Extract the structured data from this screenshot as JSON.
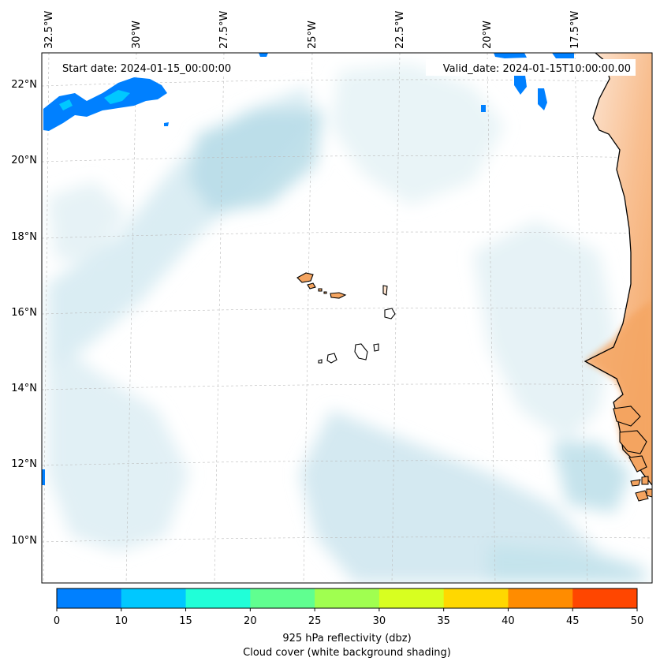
{
  "header": {
    "start_date": "Start date: 2024-01-15_00:00:00",
    "valid_date": "Valid_date: 2024-01-15T10:00:00.00"
  },
  "map": {
    "lon_labels": [
      "32.5°W",
      "30°W",
      "27.5°W",
      "25°W",
      "22.5°W",
      "20°W",
      "17.5°W"
    ],
    "lat_labels": [
      "22°N",
      "20°N",
      "18°N",
      "16°N",
      "14°N",
      "12°N",
      "10°N"
    ],
    "colors": {
      "land": "#f4a460",
      "cloud": "#bfe0ea",
      "coast": "#000000"
    }
  },
  "colorbar": {
    "ticks": [
      "0",
      "10",
      "15",
      "20",
      "25",
      "30",
      "35",
      "40",
      "45",
      "50"
    ],
    "colors": [
      "#0080ff",
      "#00c8ff",
      "#20ffd8",
      "#60ff90",
      "#a0ff50",
      "#d8ff20",
      "#ffd800",
      "#ff8c00",
      "#ff4600"
    ],
    "label_line1": "925 hPa reflectivity (dbz)",
    "label_line2": "Cloud cover (white background shading)"
  }
}
